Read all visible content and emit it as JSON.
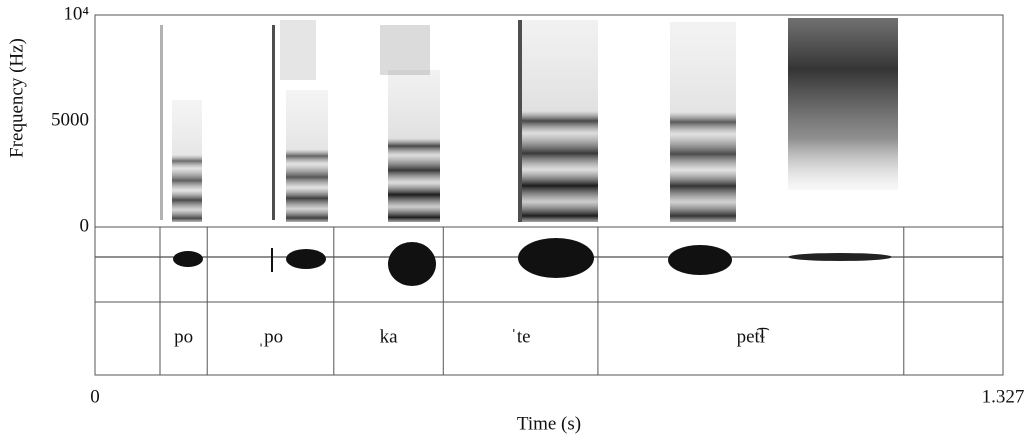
{
  "chart_data": {
    "type": "spectrogram",
    "ylabel": "Frequency (Hz)",
    "xlabel": "Time (s)",
    "ylim": [
      0,
      10000
    ],
    "yticks": [
      0,
      5000,
      {
        "value": 10000,
        "label": "10⁴"
      }
    ],
    "xlim": [
      0,
      1.327
    ],
    "xticks": [
      0,
      1.327
    ],
    "boundaries": [
      0.095,
      0.164,
      0.349,
      0.509,
      0.735,
      1.182
    ],
    "intervals": [
      "po",
      "ˌpo",
      "ka",
      "ˈte",
      "pet͡ɬ"
    ]
  }
}
